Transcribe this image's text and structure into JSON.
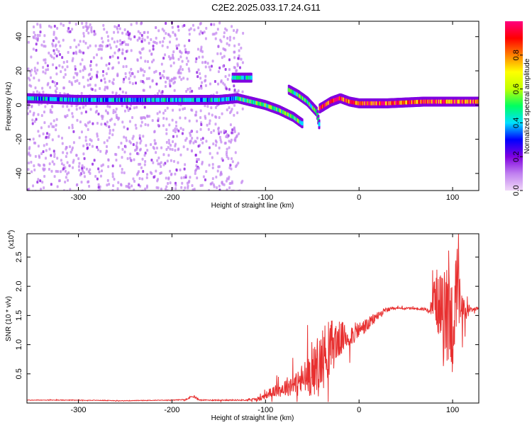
{
  "title": "C2E2.2025.033.17.24.G11",
  "chart_data": [
    {
      "type": "heatmap",
      "xlabel": "Height of straight line (km)",
      "ylabel": "Frequency (Hz)",
      "xlim": [
        -355,
        128
      ],
      "ylim": [
        -50,
        49
      ],
      "xticks": [
        -300,
        -200,
        -100,
        0,
        100
      ],
      "yticks": [
        -40,
        -20,
        0,
        20,
        40
      ],
      "colorbar": {
        "label": "Normalized spectral amplitude",
        "range": [
          0,
          1
        ],
        "ticks": [
          0.0,
          0.2,
          0.4,
          0.6,
          0.8
        ],
        "tick_labels": [
          "0.0",
          "0.2",
          "0.4",
          "0.6",
          "0.8"
        ],
        "colormap": [
          "#f0d8f8",
          "#c080f0",
          "#8000e0",
          "#0000ff",
          "#00e0ff",
          "#00ff60",
          "#c0ff00",
          "#ffff00",
          "#ff8000",
          "#ff0000",
          "#ff0080"
        ]
      },
      "features": [
        {
          "name": "",
          "x": [
            -355,
            -300,
            -250,
            -200,
            -150,
            -130
          ],
          "y": [
            4,
            3,
            3,
            3,
            3,
            4
          ],
          "amplitude": 0.4
        },
        {
          "name": "",
          "x": [
            -130,
            -115,
            -100,
            -85,
            -70,
            -60
          ],
          "y": [
            4,
            2,
            0,
            -3,
            -7,
            -11
          ],
          "amplitude": 0.5
        },
        {
          "name": "",
          "x": [
            -135,
            -125,
            -115
          ],
          "y": [
            16,
            16,
            16
          ],
          "amplitude": 0.45
        },
        {
          "name": "",
          "x": [
            -75,
            -65,
            -55,
            -45,
            -42
          ],
          "y": [
            9,
            6,
            2,
            -4,
            -13
          ],
          "amplitude": 0.5
        },
        {
          "name": "",
          "x": [
            -42,
            -30,
            -20,
            -10,
            0,
            30,
            70,
            100,
            128
          ],
          "y": [
            -2,
            2,
            4,
            2,
            1,
            1,
            2,
            2,
            2
          ],
          "amplitude": 0.9
        }
      ]
    },
    {
      "type": "line",
      "xlabel": "Height of straight line (km)",
      "ylabel": "SNR (10 * v/v)",
      "exponent_label": "(x10",
      "exponent_power": "4",
      "exponent_close": ")",
      "xlim": [
        -355,
        128
      ],
      "ylim": [
        0,
        2.9
      ],
      "xticks": [
        -300,
        -200,
        -100,
        0,
        100
      ],
      "yticks": [
        0.5,
        1.0,
        1.5,
        2.0,
        2.5
      ],
      "ytick_labels": [
        "0.5",
        "1.0",
        "1.5",
        "2.0",
        "2.5"
      ],
      "color": "#e83030",
      "series": [
        {
          "name": "",
          "x": [
            -355,
            -300,
            -250,
            -200,
            -185,
            -178,
            -170,
            -150,
            -120,
            -105,
            -95,
            -85,
            -75,
            -65,
            -55,
            -45,
            -38,
            -32,
            -28,
            -20,
            -10,
            0,
            10,
            20,
            30,
            40,
            60,
            75,
            82,
            90,
            95,
            100,
            105,
            110,
            120,
            128
          ],
          "y": [
            0.05,
            0.05,
            0.04,
            0.05,
            0.06,
            0.12,
            0.05,
            0.05,
            0.05,
            0.08,
            0.18,
            0.22,
            0.3,
            0.35,
            0.45,
            0.6,
            0.8,
            0.95,
            1.0,
            1.1,
            1.15,
            1.25,
            1.35,
            1.5,
            1.6,
            1.62,
            1.62,
            1.6,
            1.85,
            1.4,
            1.6,
            1.3,
            1.9,
            1.55,
            1.6,
            1.62
          ],
          "noise": [
            0.005,
            0.005,
            0.005,
            0.005,
            0.01,
            0.02,
            0.01,
            0.01,
            0.01,
            0.04,
            0.08,
            0.12,
            0.18,
            0.25,
            0.35,
            0.45,
            0.55,
            0.5,
            0.45,
            0.3,
            0.2,
            0.15,
            0.12,
            0.08,
            0.04,
            0.02,
            0.02,
            0.04,
            0.45,
            0.8,
            0.9,
            0.9,
            0.8,
            0.3,
            0.03,
            0.03
          ]
        }
      ]
    }
  ]
}
